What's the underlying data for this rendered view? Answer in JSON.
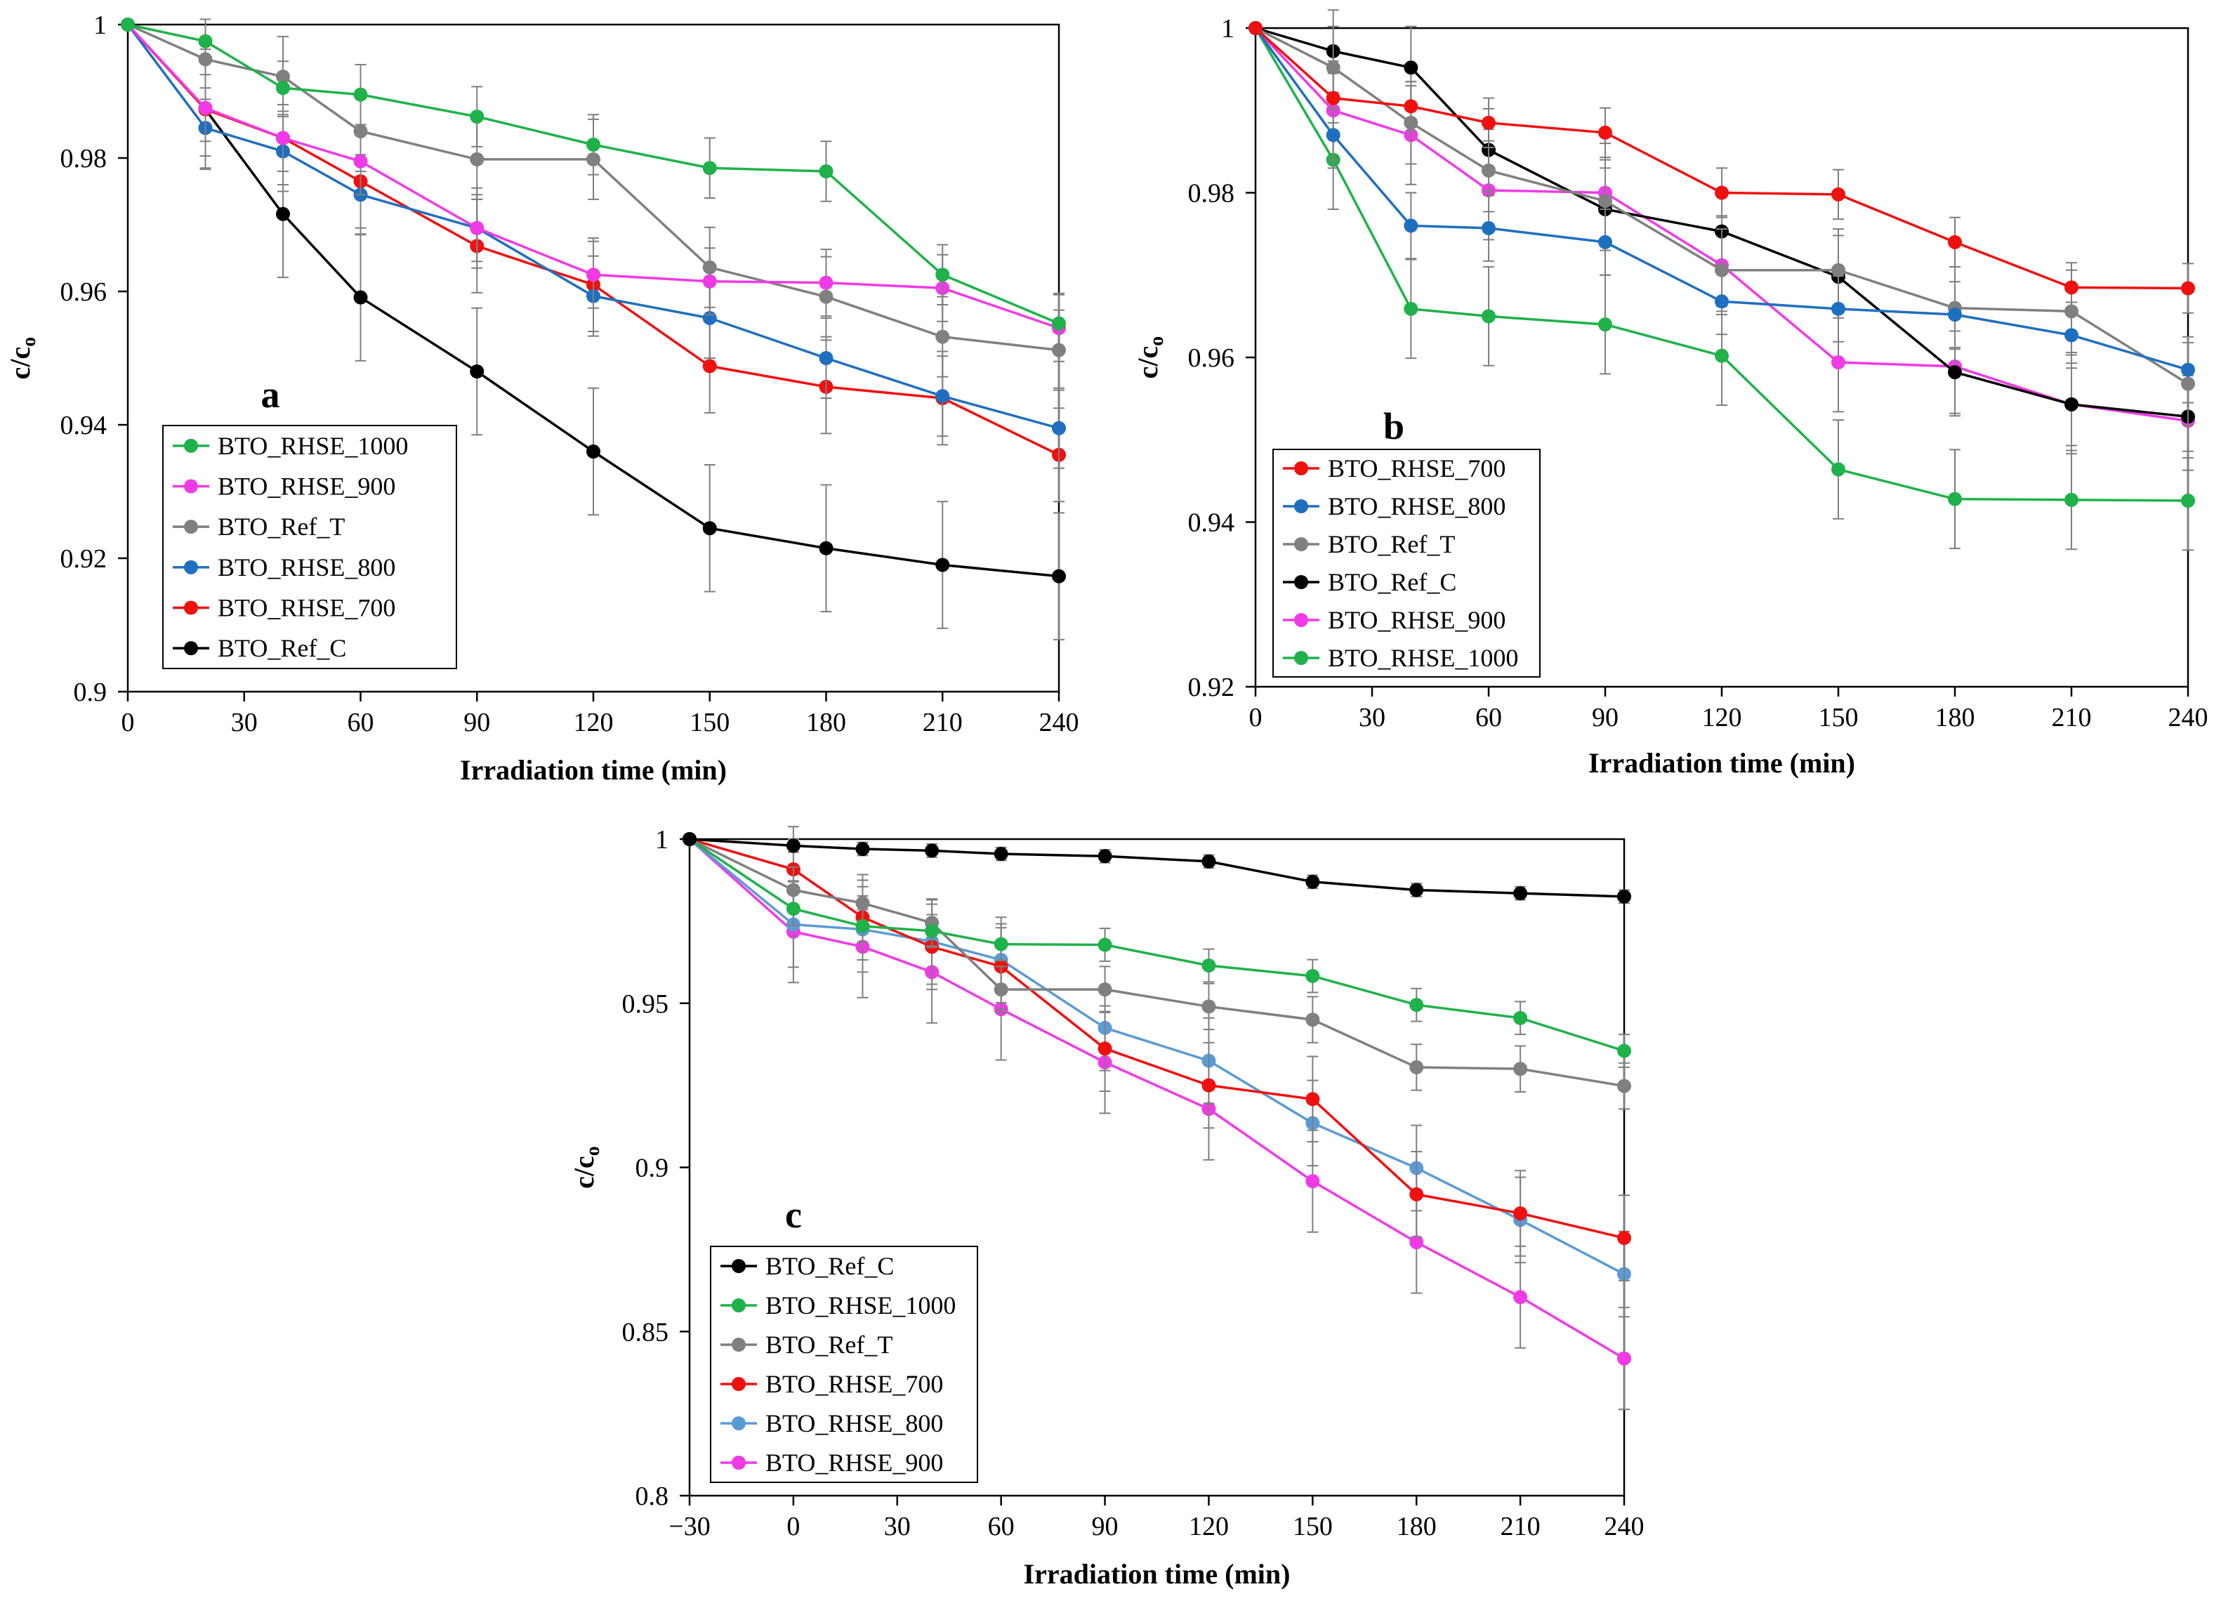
{
  "chart_data": [
    {
      "type": "line",
      "panel_label": "a",
      "xlabel": "Irradiation time (min)",
      "ylabel_main": "c/c",
      "ylabel_sub": "o",
      "xlim": [
        0,
        240
      ],
      "ylim": [
        0.9,
        1
      ],
      "x_ticks": [
        0,
        30,
        60,
        90,
        120,
        150,
        180,
        210,
        240
      ],
      "x_tick_labels": [
        "0",
        "30",
        "60",
        "90",
        "120",
        "150",
        "180",
        "210",
        "240"
      ],
      "y_ticks": [
        0.9,
        0.92,
        0.94,
        0.96,
        0.98,
        1
      ],
      "y_tick_labels": [
        "0.9",
        "0.92",
        "0.94",
        "0.96",
        "0.98",
        "1"
      ],
      "x": [
        0,
        20,
        40,
        60,
        90,
        120,
        150,
        180,
        210,
        240
      ],
      "legend_position": "bottom-left",
      "series": [
        {
          "name": "BTO_RHSE_1000",
          "color": "#1fb24a",
          "values": [
            1,
            0.9975,
            0.9905,
            0.9895,
            0.9862,
            0.982,
            0.9785,
            0.978,
            0.9625,
            0.9552
          ],
          "errors": [
            0,
            0,
            0.004,
            0.0045,
            0.0045,
            0.0045,
            0.0045,
            0.0045,
            0.0045,
            0.0045
          ]
        },
        {
          "name": "BTO_RHSE_900",
          "color": "#f03ae6",
          "values": [
            1,
            0.9875,
            0.983,
            0.9795,
            0.9695,
            0.9625,
            0.9615,
            0.9613,
            0.9605,
            0.9545
          ],
          "errors": [
            0,
            0.005,
            0.005,
            0.005,
            0.005,
            0.005,
            0.005,
            0.005,
            0.005,
            0.005
          ]
        },
        {
          "name": "BTO_Ref_T",
          "color": "#808080",
          "values": [
            1,
            0.9948,
            0.9922,
            0.984,
            0.9798,
            0.9798,
            0.9636,
            0.9592,
            0.9532,
            0.9512
          ],
          "errors": [
            0,
            0.006,
            0.006,
            0.006,
            0.006,
            0.006,
            0.006,
            0.006,
            0.006,
            0.006
          ]
        },
        {
          "name": "BTO_RHSE_800",
          "color": "#1f6fc0",
          "values": [
            1,
            0.9845,
            0.981,
            0.9745,
            0.9695,
            0.9593,
            0.956,
            0.95,
            0.9443,
            0.9395
          ],
          "errors": [
            0,
            0.006,
            0.006,
            0.006,
            0.006,
            0.006,
            0.006,
            0.006,
            0.006,
            0.006
          ]
        },
        {
          "name": "BTO_RHSE_700",
          "color": "#f01010",
          "values": [
            1,
            0.9873,
            0.983,
            0.9765,
            0.9668,
            0.961,
            0.9488,
            0.9457,
            0.944,
            0.9355
          ],
          "errors": [
            0,
            0.007,
            0.007,
            0.007,
            0.007,
            0.007,
            0.007,
            0.007,
            0.007,
            0.007
          ]
        },
        {
          "name": "BTO_Ref_C",
          "color": "#000000",
          "values": [
            1,
            0.9873,
            0.9716,
            0.9591,
            0.948,
            0.936,
            0.9245,
            0.9215,
            0.919,
            0.9173
          ],
          "errors": [
            0,
            0.009,
            0.0095,
            0.0095,
            0.0095,
            0.0095,
            0.0095,
            0.0095,
            0.0095,
            0.0095
          ]
        }
      ]
    },
    {
      "type": "line",
      "panel_label": "b",
      "xlabel": "Irradiation time (min)",
      "ylabel_main": "c/c",
      "ylabel_sub": "o",
      "xlim": [
        0,
        240
      ],
      "ylim": [
        0.92,
        1
      ],
      "x_ticks": [
        0,
        30,
        60,
        90,
        120,
        150,
        180,
        210,
        240
      ],
      "x_tick_labels": [
        "0",
        "30",
        "60",
        "90",
        "120",
        "150",
        "180",
        "210",
        "240"
      ],
      "y_ticks": [
        0.92,
        0.94,
        0.96,
        0.98,
        1
      ],
      "y_tick_labels": [
        "0.92",
        "0.94",
        "0.96",
        "0.98",
        "1"
      ],
      "x": [
        0,
        20,
        40,
        60,
        90,
        120,
        150,
        180,
        210,
        240
      ],
      "legend_position": "bottom-left",
      "series": [
        {
          "name": "BTO_RHSE_700",
          "color": "#f01010",
          "values": [
            1,
            0.9915,
            0.9905,
            0.9885,
            0.9873,
            0.98,
            0.9798,
            0.974,
            0.9685,
            0.9684
          ],
          "errors": [
            0,
            0.003,
            0.003,
            0.003,
            0.003,
            0.003,
            0.003,
            0.003,
            0.003,
            0.003
          ]
        },
        {
          "name": "BTO_RHSE_800",
          "color": "#1f6fc0",
          "values": [
            1,
            0.987,
            0.976,
            0.9757,
            0.974,
            0.9668,
            0.9659,
            0.9652,
            0.9627,
            0.9585
          ],
          "errors": [
            0,
            0.004,
            0.004,
            0.004,
            0.004,
            0.004,
            0.004,
            0.004,
            0.004,
            0.004
          ]
        },
        {
          "name": "BTO_Ref_T",
          "color": "#808080",
          "values": [
            1,
            0.9952,
            0.9885,
            0.9827,
            0.979,
            0.9706,
            0.9706,
            0.966,
            0.9656,
            0.9568
          ],
          "errors": [
            0,
            0.005,
            0.005,
            0.005,
            0.005,
            0.005,
            0.005,
            0.005,
            0.005,
            0.005
          ]
        },
        {
          "name": "BTO_Ref_C",
          "color": "#000000",
          "values": [
            1,
            0.9972,
            0.9952,
            0.9852,
            0.978,
            0.9753,
            0.9698,
            0.9582,
            0.9543,
            0.9528
          ],
          "errors": [
            0,
            0.005,
            0.005,
            0.005,
            0.005,
            0.005,
            0.005,
            0.005,
            0.005,
            0.005
          ]
        },
        {
          "name": "BTO_RHSE_900",
          "color": "#f03ae6",
          "values": [
            1,
            0.99,
            0.987,
            0.9803,
            0.98,
            0.9712,
            0.9594,
            0.9589,
            0.9543,
            0.9523
          ],
          "errors": [
            0,
            0.006,
            0.006,
            0.006,
            0.006,
            0.006,
            0.006,
            0.006,
            0.006,
            0.006
          ]
        },
        {
          "name": "BTO_RHSE_1000",
          "color": "#1fb24a",
          "values": [
            1,
            0.984,
            0.9659,
            0.965,
            0.964,
            0.9602,
            0.9464,
            0.9428,
            0.9427,
            0.9426
          ],
          "errors": [
            0,
            0.006,
            0.006,
            0.006,
            0.006,
            0.006,
            0.006,
            0.006,
            0.006,
            0.006
          ]
        }
      ]
    },
    {
      "type": "line",
      "panel_label": "c",
      "xlabel": "Irradiation time (min)",
      "ylabel_main": "c/c",
      "ylabel_sub": "o",
      "xlim": [
        -30,
        240
      ],
      "ylim": [
        0.8,
        1
      ],
      "x_ticks": [
        -30,
        0,
        30,
        60,
        90,
        120,
        150,
        180,
        210,
        240
      ],
      "x_tick_labels": [
        "−30",
        "0",
        "30",
        "60",
        "90",
        "120",
        "150",
        "180",
        "210",
        "240"
      ],
      "y_ticks": [
        0.8,
        0.85,
        0.9,
        0.95,
        1
      ],
      "y_tick_labels": [
        "0.8",
        "0.85",
        "0.9",
        "0.95",
        "1"
      ],
      "x": [
        -30,
        0,
        20,
        40,
        60,
        90,
        120,
        150,
        180,
        210,
        240
      ],
      "legend_position": "bottom-left",
      "series": [
        {
          "name": "BTO_Ref_C",
          "color": "#000000",
          "values": [
            1,
            0.998,
            0.997,
            0.9965,
            0.9955,
            0.9948,
            0.9932,
            0.987,
            0.9845,
            0.9835,
            0.9825
          ],
          "errors": [
            0,
            0.002,
            0.002,
            0.002,
            0.002,
            0.002,
            0.002,
            0.002,
            0.002,
            0.002,
            0.002
          ]
        },
        {
          "name": "BTO_RHSE_1000",
          "color": "#1fb24a",
          "values": [
            1,
            0.9788,
            0.9735,
            0.972,
            0.968,
            0.9678,
            0.9615,
            0.9583,
            0.9495,
            0.9455,
            0.9355
          ],
          "errors": [
            0,
            0.005,
            0.005,
            0.005,
            0.005,
            0.005,
            0.005,
            0.005,
            0.005,
            0.005,
            0.005
          ]
        },
        {
          "name": "BTO_Ref_T",
          "color": "#808080",
          "values": [
            1,
            0.9845,
            0.9805,
            0.9745,
            0.9542,
            0.9542,
            0.949,
            0.945,
            0.9305,
            0.93,
            0.9248
          ],
          "errors": [
            0,
            0.007,
            0.007,
            0.007,
            0.007,
            0.007,
            0.007,
            0.007,
            0.007,
            0.007,
            0.007
          ]
        },
        {
          "name": "BTO_RHSE_700",
          "color": "#f01010",
          "values": [
            1,
            0.9908,
            0.9762,
            0.9672,
            0.9612,
            0.9362,
            0.925,
            0.9208,
            0.8918,
            0.886,
            0.8785
          ],
          "errors": [
            0,
            0.013,
            0.013,
            0.013,
            0.013,
            0.013,
            0.013,
            0.013,
            0.013,
            0.013,
            0.013
          ]
        },
        {
          "name": "BTO_RHSE_800",
          "color": "#5b9bd5",
          "values": [
            1,
            0.974,
            0.9725,
            0.9688,
            0.9632,
            0.9425,
            0.9325,
            0.9135,
            0.8998,
            0.884,
            0.8675
          ],
          "errors": [
            0,
            0.013,
            0.013,
            0.013,
            0.013,
            0.013,
            0.013,
            0.013,
            0.013,
            0.013,
            0.013
          ]
        },
        {
          "name": "BTO_RHSE_900",
          "color": "#f03ae6",
          "values": [
            1,
            0.9718,
            0.9672,
            0.9595,
            0.9482,
            0.932,
            0.9178,
            0.8958,
            0.8772,
            0.8605,
            0.8418
          ],
          "errors": [
            0,
            0.0155,
            0.0155,
            0.0155,
            0.0155,
            0.0155,
            0.0155,
            0.0155,
            0.0155,
            0.0155,
            0.0155
          ]
        }
      ]
    }
  ]
}
